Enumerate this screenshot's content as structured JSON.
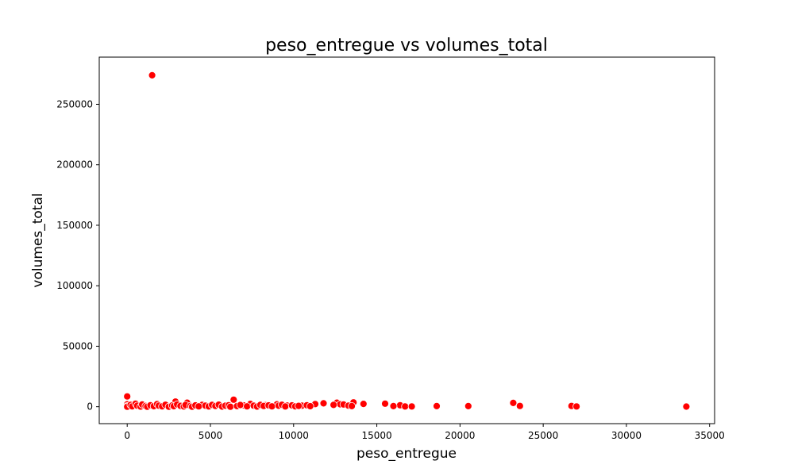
{
  "chart_data": {
    "type": "scatter",
    "title": "peso_entregue vs volumes_total",
    "xlabel": "peso_entregue",
    "ylabel": "volumes_total",
    "xlim": [
      -1680,
      35300
    ],
    "ylim": [
      -14000,
      289000
    ],
    "xticks": [
      0,
      5000,
      10000,
      15000,
      20000,
      25000,
      30000,
      35000
    ],
    "xtick_labels": [
      "0",
      "5000",
      "10000",
      "15000",
      "20000",
      "25000",
      "30000",
      "35000"
    ],
    "yticks": [
      0,
      50000,
      100000,
      150000,
      200000,
      250000
    ],
    "ytick_labels": [
      "0",
      "50000",
      "100000",
      "150000",
      "200000",
      "250000"
    ],
    "grid": false,
    "marker_color": "#ff0000",
    "marker_edge_color": "#ffffff",
    "points": [
      [
        1500,
        274000
      ],
      [
        0,
        8500
      ],
      [
        6400,
        5800
      ],
      [
        2900,
        4200
      ],
      [
        3600,
        3300
      ],
      [
        13600,
        3600
      ],
      [
        12600,
        3300
      ],
      [
        23200,
        3100
      ],
      [
        11800,
        2800
      ],
      [
        15500,
        2500
      ],
      [
        14200,
        2300
      ],
      [
        11300,
        2200
      ],
      [
        12800,
        2000
      ],
      [
        9000,
        2000
      ],
      [
        7400,
        2300
      ],
      [
        4500,
        1500
      ],
      [
        7000,
        1100
      ],
      [
        8300,
        1300
      ],
      [
        9600,
        1000
      ],
      [
        10500,
        900
      ],
      [
        16400,
        1200
      ],
      [
        16000,
        500
      ],
      [
        16700,
        200
      ],
      [
        17100,
        200
      ],
      [
        18600,
        500
      ],
      [
        20500,
        500
      ],
      [
        23600,
        600
      ],
      [
        26700,
        600
      ],
      [
        27000,
        200
      ],
      [
        33600,
        100
      ],
      [
        0,
        2000
      ],
      [
        0,
        500
      ],
      [
        0,
        0
      ],
      [
        200,
        1500
      ],
      [
        300,
        300
      ],
      [
        500,
        2500
      ],
      [
        600,
        800
      ],
      [
        800,
        100
      ],
      [
        900,
        1800
      ],
      [
        1100,
        600
      ],
      [
        1200,
        0
      ],
      [
        1400,
        1200
      ],
      [
        1600,
        400
      ],
      [
        1800,
        2200
      ],
      [
        1900,
        900
      ],
      [
        2100,
        300
      ],
      [
        2300,
        1600
      ],
      [
        2500,
        0
      ],
      [
        2700,
        1000
      ],
      [
        2800,
        400
      ],
      [
        3000,
        1900
      ],
      [
        3200,
        700
      ],
      [
        3400,
        200
      ],
      [
        3500,
        1400
      ],
      [
        3800,
        600
      ],
      [
        3900,
        0
      ],
      [
        4100,
        1100
      ],
      [
        4300,
        300
      ],
      [
        4700,
        900
      ],
      [
        4900,
        200
      ],
      [
        5100,
        1500
      ],
      [
        5300,
        600
      ],
      [
        5500,
        1700
      ],
      [
        5700,
        100
      ],
      [
        5900,
        800
      ],
      [
        6100,
        1200
      ],
      [
        6200,
        0
      ],
      [
        6600,
        500
      ],
      [
        6800,
        1400
      ],
      [
        7200,
        300
      ],
      [
        7600,
        900
      ],
      [
        7800,
        100
      ],
      [
        8000,
        1500
      ],
      [
        8200,
        600
      ],
      [
        8500,
        1100
      ],
      [
        8700,
        300
      ],
      [
        9100,
        800
      ],
      [
        9300,
        1600
      ],
      [
        9500,
        200
      ],
      [
        9900,
        1100
      ],
      [
        10100,
        300
      ],
      [
        10300,
        700
      ],
      [
        10800,
        1200
      ],
      [
        11000,
        400
      ],
      [
        12400,
        1500
      ],
      [
        13000,
        1900
      ],
      [
        13300,
        900
      ],
      [
        13500,
        500
      ]
    ]
  }
}
